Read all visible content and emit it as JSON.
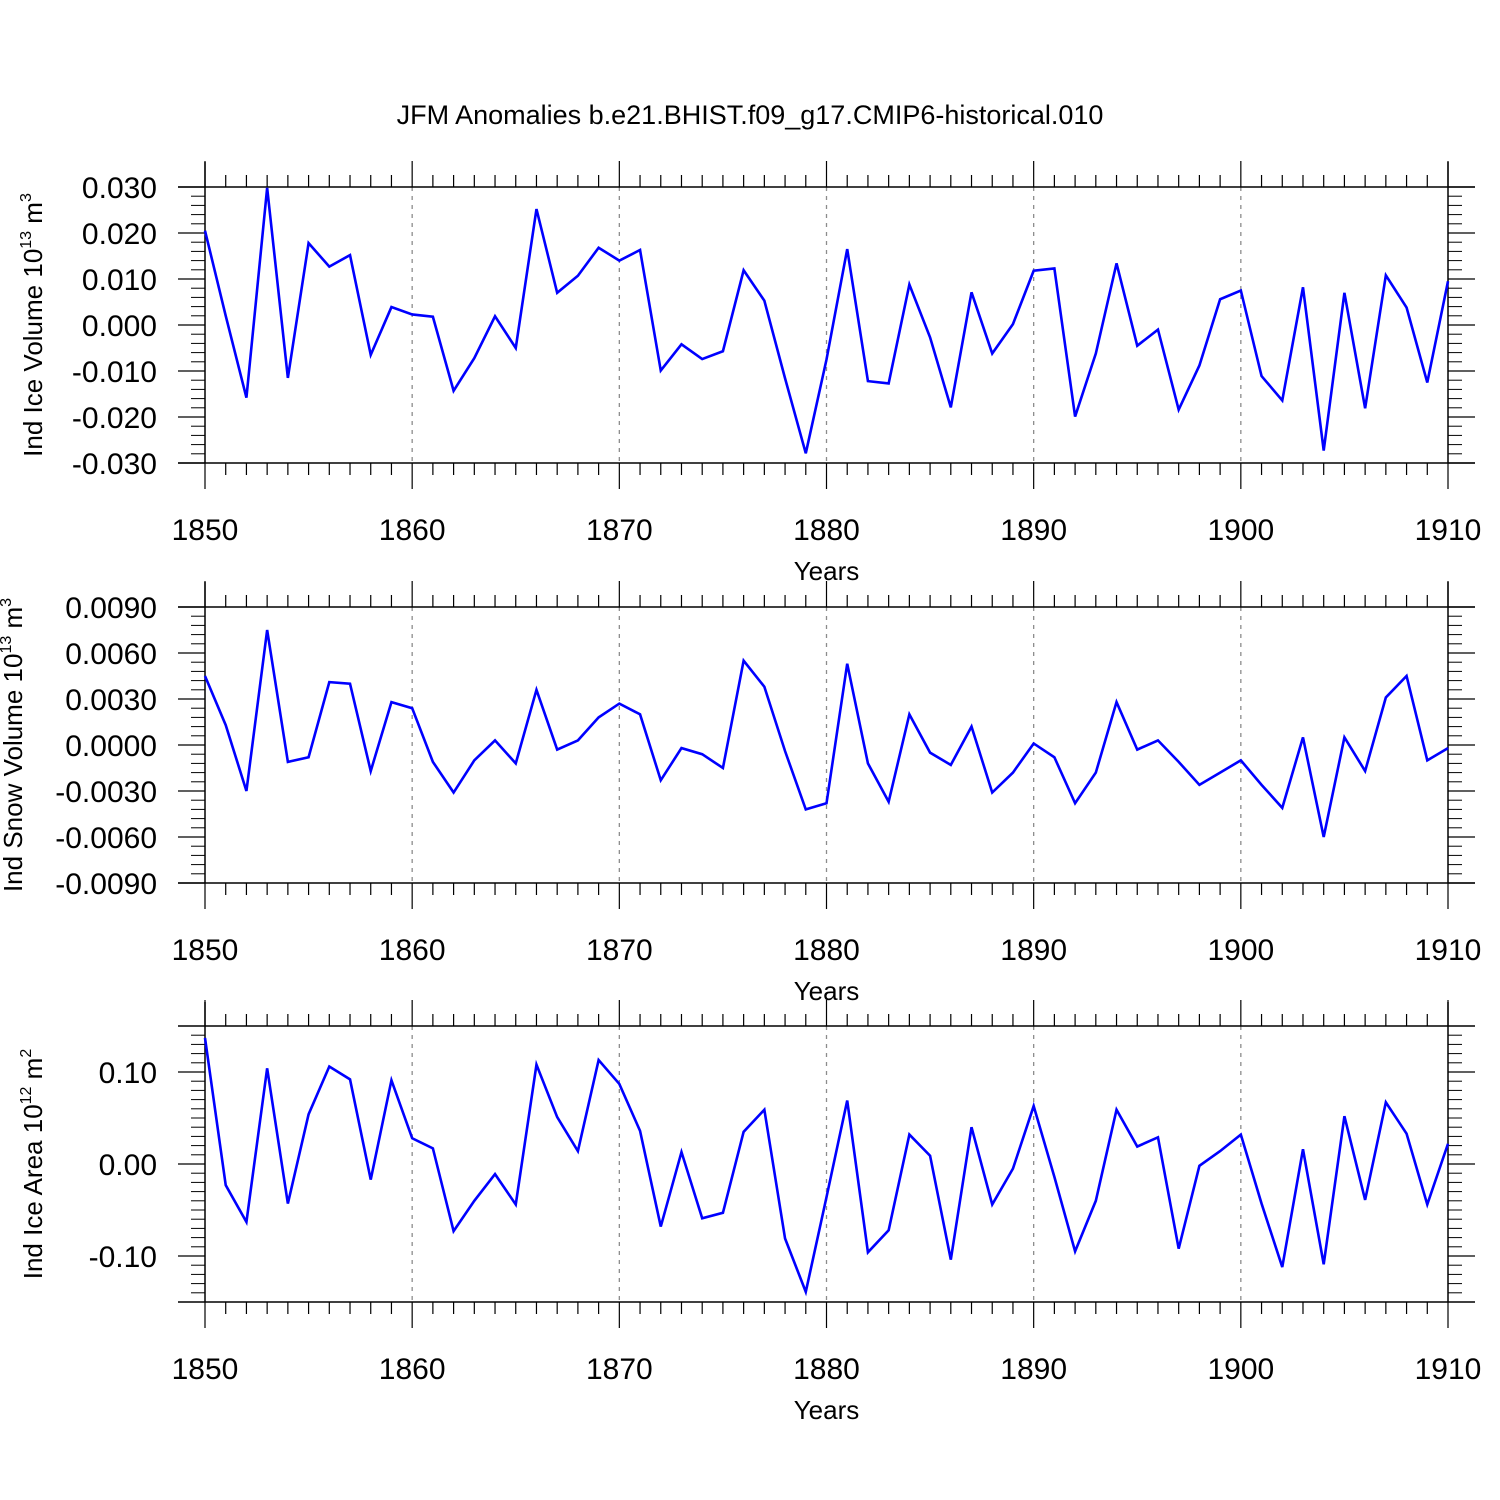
{
  "title": "JFM Anomalies b.e21.BHIST.f09_g17.CMIP6-historical.010",
  "colors": {
    "series": "#0000ff",
    "axis": "#000000",
    "grid": "#8c8c8c"
  },
  "chart_data": [
    {
      "type": "line",
      "ylabel_main": "Ind Ice Volume 10",
      "ylabel_exp": "13",
      "ylabel_unit": " m",
      "ylabel_unit_exp": "3",
      "xlabel": "Years",
      "xlim": [
        1850,
        1910
      ],
      "ylim": [
        -0.03,
        0.03
      ],
      "xticks": [
        1850,
        1860,
        1870,
        1880,
        1890,
        1900,
        1910
      ],
      "yticks": [
        -0.03,
        -0.02,
        -0.01,
        0.0,
        0.01,
        0.02,
        0.03
      ],
      "ytick_labels": [
        "-0.030",
        "-0.020",
        "-0.010",
        "0.000",
        "0.010",
        "0.020",
        "0.030"
      ],
      "x_start": 1850,
      "values": [
        0.0205,
        0.002,
        -0.0158,
        0.0298,
        -0.0115,
        0.0178,
        0.0127,
        0.0152,
        -0.0065,
        0.0039,
        0.0023,
        0.0018,
        -0.0143,
        -0.0072,
        0.0019,
        -0.005,
        0.0252,
        0.007,
        0.0107,
        0.0168,
        0.014,
        0.0163,
        -0.0099,
        -0.0042,
        -0.0074,
        -0.0057,
        0.0119,
        0.0053,
        -0.0116,
        -0.0279,
        -0.0075,
        0.0165,
        -0.0122,
        -0.0127,
        0.0088,
        -0.0027,
        -0.0179,
        0.0071,
        -0.0062,
        0.0002,
        0.0118,
        0.0123,
        -0.0199,
        -0.0062,
        0.0134,
        -0.0045,
        -0.001,
        -0.0184,
        -0.0088,
        0.0056,
        0.0075,
        -0.0111,
        -0.0164,
        0.0082,
        -0.0273,
        0.007,
        -0.0181,
        0.0108,
        0.0038,
        -0.0125,
        0.0095
      ]
    },
    {
      "type": "line",
      "ylabel_main": "Ind Snow Volume 10",
      "ylabel_exp": "13",
      "ylabel_unit": " m",
      "ylabel_unit_exp": "3",
      "xlabel": "Years",
      "xlim": [
        1850,
        1910
      ],
      "ylim": [
        -0.009,
        0.009
      ],
      "xticks": [
        1850,
        1860,
        1870,
        1880,
        1890,
        1900,
        1910
      ],
      "yticks": [
        -0.009,
        -0.006,
        -0.003,
        0.0,
        0.003,
        0.006,
        0.009
      ],
      "ytick_labels": [
        "-0.0090",
        "-0.0060",
        "-0.0030",
        "0.0000",
        "0.0030",
        "0.0060",
        "0.0090"
      ],
      "x_start": 1850,
      "values": [
        0.0045,
        0.0013,
        -0.003,
        0.0075,
        -0.0011,
        -0.0008,
        0.0041,
        0.004,
        -0.0017,
        0.0028,
        0.0024,
        -0.0011,
        -0.0031,
        -0.001,
        0.0003,
        -0.0012,
        0.0036,
        -0.0003,
        0.0003,
        0.0018,
        0.0027,
        0.002,
        -0.0023,
        -0.0002,
        -0.0006,
        -0.0015,
        0.0055,
        0.0038,
        -0.0004,
        -0.0042,
        -0.0038,
        0.0053,
        -0.0012,
        -0.0037,
        0.002,
        -0.0005,
        -0.0013,
        0.0012,
        -0.0031,
        -0.0018,
        0.0001,
        -0.0008,
        -0.0038,
        -0.0018,
        0.0028,
        -0.0003,
        0.0003,
        -0.0011,
        -0.0026,
        -0.0018,
        -0.001,
        -0.0026,
        -0.0041,
        0.0005,
        -0.006,
        0.0005,
        -0.0017,
        0.0031,
        0.0045,
        -0.001,
        -0.0002
      ]
    },
    {
      "type": "line",
      "ylabel_main": "Ind Ice Area 10",
      "ylabel_exp": "12",
      "ylabel_unit": " m",
      "ylabel_unit_exp": "2",
      "xlabel": "Years",
      "xlim": [
        1850,
        1910
      ],
      "ylim": [
        -0.15,
        0.15
      ],
      "xticks": [
        1850,
        1860,
        1870,
        1880,
        1890,
        1900,
        1910
      ],
      "yticks": [
        -0.1,
        0.0,
        0.1
      ],
      "ytick_labels": [
        "-0.10",
        "0.00",
        "0.10"
      ],
      "x_start": 1850,
      "values": [
        0.137,
        -0.023,
        -0.063,
        0.104,
        -0.043,
        0.054,
        0.106,
        0.092,
        -0.017,
        0.091,
        0.028,
        0.017,
        -0.073,
        -0.04,
        -0.011,
        -0.044,
        0.108,
        0.051,
        0.014,
        0.113,
        0.087,
        0.036,
        -0.068,
        0.013,
        -0.059,
        -0.053,
        0.035,
        0.059,
        -0.081,
        -0.139,
        -0.036,
        0.069,
        -0.096,
        -0.072,
        0.032,
        0.009,
        -0.104,
        0.04,
        -0.044,
        -0.005,
        0.063,
        -0.014,
        -0.095,
        -0.04,
        0.059,
        0.019,
        0.029,
        -0.092,
        -0.002,
        0.014,
        0.032,
        -0.043,
        -0.112,
        0.016,
        -0.109,
        0.052,
        -0.039,
        0.067,
        0.033,
        -0.044,
        0.022
      ]
    }
  ]
}
